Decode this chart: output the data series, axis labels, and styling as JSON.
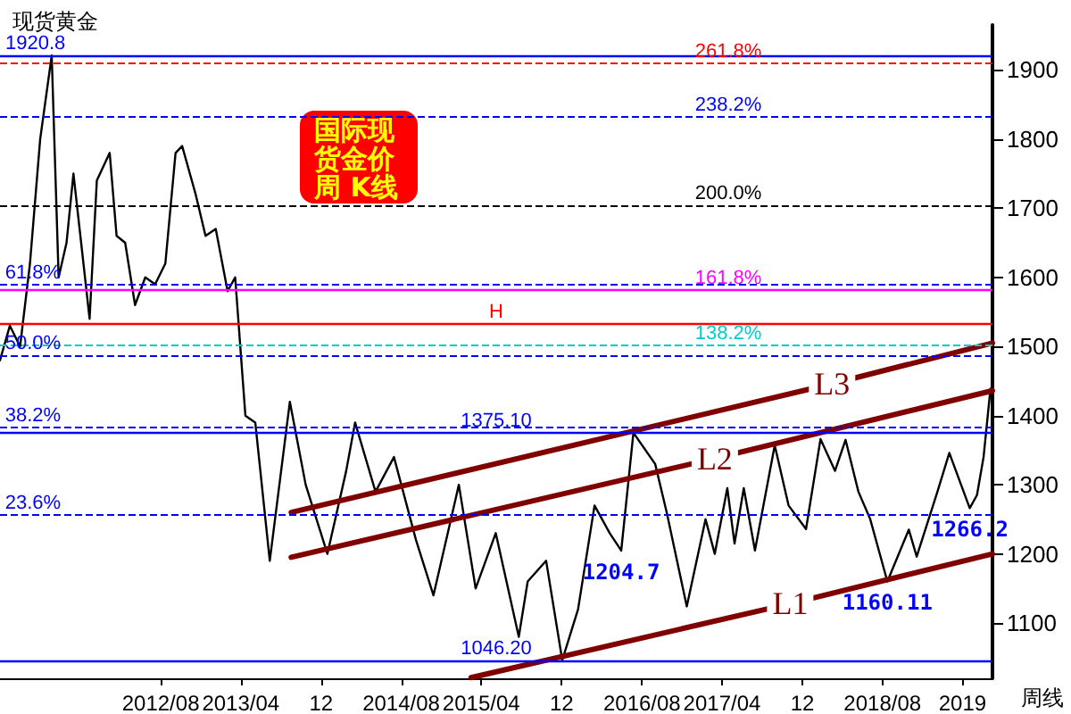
{
  "chart_data": {
    "type": "line",
    "title": "现货黄金",
    "subtitle": "国际现货金价周 K线",
    "x": [
      "2011-04-01",
      "2011-05-01",
      "2011-06-01",
      "2011-07-01",
      "2011-08-01",
      "2011-09-05",
      "2011-09-26",
      "2011-10-20",
      "2011-11-10",
      "2011-12-29",
      "2012-01-20",
      "2012-02-28",
      "2012-03-20",
      "2012-04-15",
      "2012-05-15",
      "2012-06-15",
      "2012-07-15",
      "2012-08-15",
      "2012-09-15",
      "2012-10-05",
      "2012-11-15",
      "2012-12-15",
      "2013-01-15",
      "2013-02-20",
      "2013-03-15",
      "2013-04-15",
      "2013-05-15",
      "2013-06-28",
      "2013-08-28",
      "2013-10-15",
      "2013-12-20",
      "2014-02-15",
      "2014-03-14",
      "2014-05-15",
      "2014-07-10",
      "2014-09-15",
      "2014-11-07",
      "2015-01-23",
      "2015-03-15",
      "2015-05-15",
      "2015-07-24",
      "2015-08-20",
      "2015-10-15",
      "2015-12-03",
      "2016-01-20",
      "2016-03-10",
      "2016-04-25",
      "2016-05-30",
      "2016-07-06",
      "2016-09-10",
      "2016-10-15",
      "2016-12-15",
      "2017-02-10",
      "2017-03-10",
      "2017-04-17",
      "2017-05-09",
      "2017-06-06",
      "2017-07-10",
      "2017-09-08",
      "2017-10-20",
      "2017-12-12",
      "2018-01-25",
      "2018-03-10",
      "2018-04-11",
      "2018-05-20",
      "2018-06-25",
      "2018-08-16",
      "2018-10-20",
      "2018-11-13",
      "2019-01-15",
      "2019-02-20",
      "2019-04-23",
      "2019-05-15",
      "2019-06-04",
      "2019-06-25"
    ],
    "series": [
      {
        "color": "#000000",
        "values": [
          1480,
          1530,
          1500,
          1620,
          1800,
          1920.8,
          1600,
          1650,
          1750,
          1540,
          1740,
          1780,
          1660,
          1650,
          1560,
          1600,
          1590,
          1620,
          1780,
          1790,
          1720,
          1660,
          1670,
          1580,
          1600,
          1400,
          1390,
          1190,
          1420,
          1300,
          1200,
          1320,
          1390,
          1290,
          1340,
          1220,
          1140,
          1300,
          1150,
          1230,
          1080,
          1160,
          1190,
          1046.2,
          1120,
          1270,
          1230,
          1204.7,
          1375.1,
          1330,
          1260,
          1124,
          1250,
          1200,
          1295,
          1215,
          1295,
          1205,
          1357,
          1270,
          1236,
          1366,
          1320,
          1365,
          1290,
          1250,
          1160.11,
          1235,
          1196,
          1290,
          1346,
          1266.2,
          1285,
          1340,
          1439
        ]
      },
      {
        "name": "L1",
        "type": "line",
        "color": "#800000",
        "x": [
          "2015-03-01",
          "2017-10-25",
          "2019-07-01"
        ],
        "values": [
          1021,
          1128,
          1200
        ]
      },
      {
        "name": "L2",
        "type": "line",
        "color": "#800000",
        "x": [
          "2013-09-01",
          "2017-03-10",
          "2019-07-01"
        ],
        "values": [
          1195,
          1338,
          1436
        ]
      },
      {
        "name": "L3",
        "type": "line",
        "color": "#800000",
        "x": [
          "2013-09-01",
          "2018-03-01",
          "2019-07-01"
        ],
        "values": [
          1260,
          1446,
          1505
        ]
      }
    ],
    "xlim": [
      "2011-04-01",
      "2019-07-01"
    ],
    "xticks": [
      {
        "value": "2012-08-01",
        "label": "2012/08"
      },
      {
        "value": "2013-04-01",
        "label": "2013/04"
      },
      {
        "value": "2013-12-01",
        "label": "12"
      },
      {
        "value": "2014-08-01",
        "label": "2014/08"
      },
      {
        "value": "2015-04-01",
        "label": "2015/04"
      },
      {
        "value": "2015-12-01",
        "label": "12"
      },
      {
        "value": "2016-08-01",
        "label": "2016/08"
      },
      {
        "value": "2017-04-01",
        "label": "2017/04"
      },
      {
        "value": "2017-12-01",
        "label": "12"
      },
      {
        "value": "2018-08-01",
        "label": "2018/08"
      },
      {
        "value": "2019-04-01",
        "label": "2019"
      }
    ],
    "ylim": [
      1020,
      1965
    ],
    "yticks": [
      1100,
      1200,
      1300,
      1400,
      1500,
      1600,
      1700,
      1800,
      1900
    ],
    "ref_lines": [
      {
        "axis": "y",
        "value": 1920.8,
        "label": "1920.8",
        "color": "#0000ff",
        "line_style": "solid"
      },
      {
        "axis": "y",
        "value": 1046.2,
        "label": "1046.20",
        "color": "#0000ff",
        "line_style": "solid"
      },
      {
        "axis": "y",
        "value": 1375.1,
        "label": "1375.10",
        "color": "#0000ff",
        "line_style": "solid"
      },
      {
        "axis": "y",
        "value": 1533,
        "label": "H",
        "color": "#ff0000",
        "line_style": "solid"
      },
      {
        "axis": "y",
        "value": 1589,
        "color": "#0000ff",
        "line_style": "dashed"
      },
      {
        "axis": "y",
        "value": 1487,
        "color": "#0000ff",
        "line_style": "dashed"
      },
      {
        "axis": "y",
        "value": 1383,
        "color": "#0000ff",
        "line_style": "dashed"
      },
      {
        "axis": "y",
        "value": 1256,
        "color": "#0000ff",
        "line_style": "dashed"
      },
      {
        "axis": "y",
        "value": 1910,
        "color": "#ff0000",
        "line_style": "dashed"
      },
      {
        "axis": "y",
        "value": 1832,
        "color": "#0000ff",
        "line_style": "dashed"
      },
      {
        "axis": "y",
        "value": 1704,
        "color": "#000000",
        "line_style": "dashed"
      },
      {
        "axis": "y",
        "value": 1581,
        "color": "#ff00ff",
        "line_style": "solid"
      },
      {
        "axis": "y",
        "value": 1502,
        "color": "#00cccc",
        "line_style": "dashed"
      }
    ],
    "annotations": [
      "周线",
      {
        "text": "61.8%",
        "x": "2011-07-10",
        "y": 1589
      },
      {
        "text": "50.0%",
        "x": "2011-07-10",
        "y": 1487
      },
      {
        "text": "38.2%",
        "x": "2011-07-10",
        "y": 1383
      },
      {
        "text": "23.6%",
        "x": "2011-07-10",
        "y": 1256
      },
      {
        "text": "261.8%",
        "x": "2017-04-20",
        "y": 1910
      },
      {
        "text": "238.2%",
        "x": "2017-04-20",
        "y": 1832
      },
      {
        "text": "200.0%",
        "x": "2017-04-20",
        "y": 1704
      },
      {
        "text": "161.8%",
        "x": "2017-04-20",
        "y": 1581
      },
      {
        "text": "138.2%",
        "x": "2017-04-20",
        "y": 1502
      },
      {
        "text": "1204.7",
        "x": "2016-05-30",
        "y": 1204.7
      },
      {
        "text": "1160.11",
        "x": "2018-08-16",
        "y": 1160.11
      },
      {
        "text": "1266.2",
        "x": "2019-04-23",
        "y": 1266.2
      }
    ],
    "marker": "none",
    "line_style": "solid",
    "grid": false,
    "legend": false
  }
}
